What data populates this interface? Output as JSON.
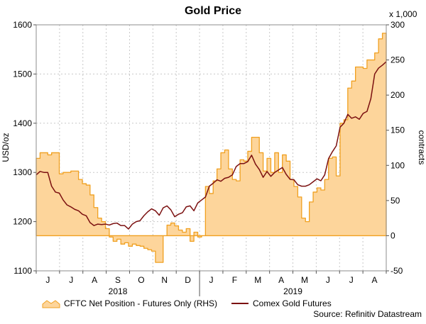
{
  "chart_data": {
    "type": "area",
    "title": "Gold Price",
    "ylabel_left": "USD/oz",
    "ylabel_right": "contracts",
    "right_axis_multiplier": "x 1,000",
    "ylim_left": [
      1100,
      1600
    ],
    "ylim_right": [
      -50,
      300
    ],
    "yticks_left": [
      "1100",
      "1200",
      "1300",
      "1400",
      "1500",
      "1600"
    ],
    "yticks_right": [
      "-50",
      "0",
      "50",
      "100",
      "150",
      "200",
      "250",
      "300"
    ],
    "month_labels": [
      "J",
      "J",
      "A",
      "S",
      "O",
      "N",
      "D",
      "J",
      "F",
      "M",
      "A",
      "M",
      "J",
      "J",
      "A"
    ],
    "year_labels": [
      "2018",
      "2019"
    ],
    "grid": true,
    "legend_position": "bottom",
    "source": "Source: Refinitiv Datastream",
    "colors": {
      "area_fill": "#fdd59b",
      "area_stroke": "#f0a020",
      "line": "#7b1010",
      "grid": "#c8c8c8"
    },
    "series": [
      {
        "name": "CFTC Net Position - Futures Only (RHS)",
        "kind": "area",
        "axis": "right",
        "x_start": "2018-06-01",
        "x_end": "2019-08-10",
        "values": [
          110,
          118,
          118,
          115,
          118,
          118,
          88,
          90,
          90,
          92,
          92,
          80,
          74,
          72,
          58,
          40,
          25,
          20,
          10,
          -2,
          -8,
          -5,
          -12,
          -10,
          -15,
          -12,
          -14,
          -15,
          -18,
          -20,
          -22,
          -38,
          -38,
          0,
          15,
          18,
          14,
          8,
          5,
          10,
          -8,
          5,
          -2,
          0,
          70,
          60,
          78,
          95,
          118,
          122,
          95,
          80,
          78,
          108,
          106,
          120,
          140,
          140,
          118,
          92,
          110,
          90,
          118,
          90,
          115,
          106,
          80,
          70,
          55,
          25,
          20,
          48,
          62,
          68,
          65,
          80,
          110,
          112,
          85,
          160,
          165,
          210,
          220,
          240,
          240,
          238,
          250,
          250,
          260,
          280,
          288,
          288
        ]
      },
      {
        "name": "Comex Gold Futures",
        "kind": "line",
        "axis": "left",
        "x_start": "2018-06-01",
        "x_end": "2019-08-10",
        "values": [
          1295,
          1302,
          1300,
          1300,
          1272,
          1260,
          1258,
          1244,
          1234,
          1230,
          1225,
          1222,
          1215,
          1212,
          1198,
          1192,
          1195,
          1194,
          1195,
          1193,
          1196,
          1197,
          1192,
          1192,
          1185,
          1195,
          1200,
          1202,
          1212,
          1220,
          1226,
          1222,
          1213,
          1228,
          1232,
          1224,
          1210,
          1215,
          1218,
          1230,
          1232,
          1222,
          1238,
          1244,
          1250,
          1272,
          1278,
          1285,
          1282,
          1288,
          1290,
          1295,
          1312,
          1318,
          1318,
          1322,
          1335,
          1317,
          1306,
          1290,
          1302,
          1292,
          1300,
          1305,
          1310,
          1296,
          1286,
          1285,
          1275,
          1272,
          1272,
          1275,
          1281,
          1287,
          1283,
          1295,
          1328,
          1342,
          1354,
          1392,
          1400,
          1418,
          1410,
          1413,
          1408,
          1420,
          1424,
          1450,
          1500,
          1512,
          1518,
          1525
        ]
      }
    ]
  }
}
